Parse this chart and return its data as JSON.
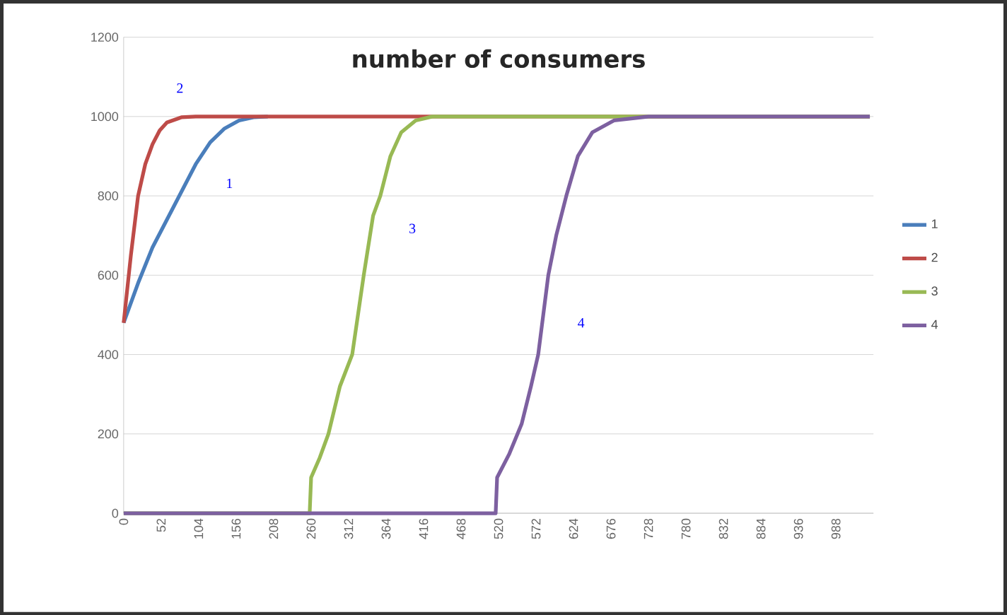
{
  "chart_data": {
    "type": "line",
    "title": "number of consumers",
    "xlim": [
      0,
      1040
    ],
    "xticks": [
      0,
      52,
      104,
      156,
      208,
      260,
      312,
      364,
      416,
      468,
      520,
      572,
      624,
      676,
      728,
      780,
      832,
      884,
      936,
      988
    ],
    "ylim": [
      0,
      1200
    ],
    "yticks": [
      0,
      200,
      400,
      600,
      800,
      1000,
      1200
    ],
    "grid": "y",
    "legend": "right",
    "marker": "none",
    "line_style": "solid",
    "series": [
      {
        "name": "1",
        "color": "#4a7ebb",
        "x": [
          0,
          20,
          40,
          60,
          80,
          100,
          120,
          140,
          160,
          180,
          200
        ],
        "values": [
          480,
          580,
          670,
          740,
          810,
          880,
          935,
          970,
          990,
          998,
          1000
        ]
      },
      {
        "name": "2",
        "color": "#be4b48",
        "x": [
          0,
          10,
          20,
          30,
          40,
          50,
          60,
          80,
          100,
          1035
        ],
        "values": [
          480,
          650,
          800,
          880,
          930,
          965,
          985,
          998,
          1000,
          1000
        ]
      },
      {
        "name": "3",
        "color": "#98b954",
        "x": [
          0,
          258,
          260,
          272,
          284,
          300,
          317,
          333,
          346,
          356,
          370,
          385,
          405,
          428,
          1035
        ],
        "values": [
          0,
          0,
          90,
          140,
          200,
          320,
          400,
          600,
          750,
          800,
          900,
          960,
          990,
          1000,
          1000
        ]
      },
      {
        "name": "4",
        "color": "#7d60a0",
        "x": [
          0,
          516,
          518,
          535,
          552,
          565,
          575,
          589,
          600,
          614,
          630,
          650,
          680,
          728,
          1035
        ],
        "values": [
          0,
          0,
          90,
          150,
          225,
          320,
          400,
          600,
          700,
          800,
          900,
          960,
          990,
          1000,
          1000
        ]
      }
    ],
    "annotations": [
      "2",
      "1",
      "3",
      "4"
    ]
  }
}
